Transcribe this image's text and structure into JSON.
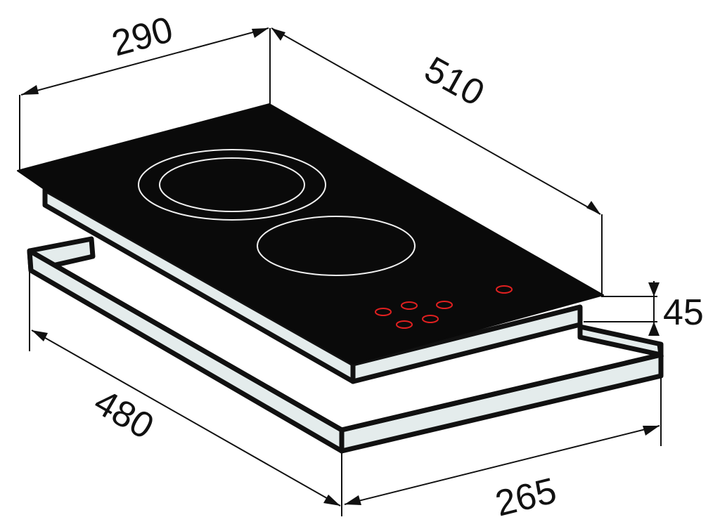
{
  "dimensions": {
    "top_width": "290",
    "top_depth": "510",
    "thickness": "45",
    "cutout_depth": "480",
    "cutout_width": "265"
  },
  "colors": {
    "glass": "#0a0a0a",
    "frame": "#e4ecec",
    "outline": "#111111",
    "zone_ring": "#f0f0f0",
    "control": "#e02020"
  },
  "cooking_zones": 2,
  "touch_controls": 6
}
